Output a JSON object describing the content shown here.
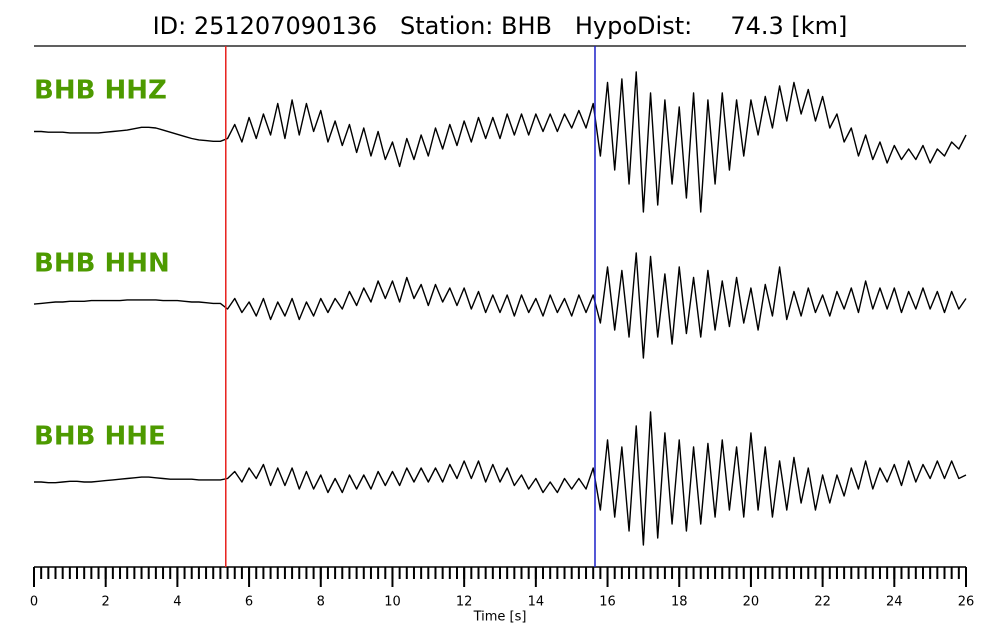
{
  "chart_data": {
    "type": "waveform",
    "title": "ID: 251207090136   Station: BHB   HypoDist:     74.3 [km]",
    "xlabel": "Time [s]",
    "xlim": [
      0,
      26
    ],
    "xticks": [
      0,
      2,
      4,
      6,
      8,
      10,
      12,
      14,
      16,
      18,
      20,
      22,
      24,
      26
    ],
    "xminorticks": [
      0,
      0.2,
      0.4,
      0.6,
      0.8,
      1,
      1.2,
      1.4,
      1.6,
      1.8,
      2,
      2.2,
      2.4,
      2.6,
      2.8,
      3,
      3.2,
      3.4,
      3.6,
      3.8,
      4,
      4.2,
      4.4,
      4.6,
      4.8,
      5,
      5.2,
      5.4,
      5.6,
      5.8,
      6,
      6.2,
      6.4,
      6.6,
      6.8,
      7,
      7.2,
      7.4,
      7.6,
      7.8,
      8,
      8.2,
      8.4,
      8.6,
      8.8,
      9,
      9.2,
      9.4,
      9.6,
      9.8,
      10,
      10.2,
      10.4,
      10.6,
      10.8,
      11,
      11.2,
      11.4,
      11.6,
      11.8,
      12,
      12.2,
      12.4,
      12.6,
      12.8,
      13,
      13.2,
      13.4,
      13.6,
      13.8,
      14,
      14.2,
      14.4,
      14.6,
      14.8,
      15,
      15.2,
      15.4,
      15.6,
      15.8,
      16,
      16.2,
      16.4,
      16.6,
      16.8,
      17,
      17.2,
      17.4,
      17.6,
      17.8,
      18,
      18.2,
      18.4,
      18.6,
      18.8,
      19,
      19.2,
      19.4,
      19.6,
      19.8,
      20,
      20.2,
      20.4,
      20.6,
      20.8,
      21,
      21.2,
      21.4,
      21.6,
      21.8,
      22,
      22.2,
      22.4,
      22.6,
      22.8,
      23,
      23.2,
      23.4,
      23.6,
      23.8,
      24,
      24.2,
      24.4,
      24.6,
      24.8,
      25,
      25.2,
      25.4,
      25.6,
      25.8,
      26
    ],
    "picks": [
      {
        "time": 5.35,
        "color": "#e8201c"
      },
      {
        "time": 15.65,
        "color": "#1c20c8"
      }
    ],
    "label_color": "#4d9a00",
    "x": [
      0,
      0.2,
      0.4,
      0.6,
      0.8,
      1,
      1.2,
      1.4,
      1.6,
      1.8,
      2,
      2.2,
      2.4,
      2.6,
      2.8,
      3,
      3.2,
      3.4,
      3.6,
      3.8,
      4,
      4.2,
      4.4,
      4.6,
      4.8,
      5,
      5.2,
      5.4,
      5.6,
      5.8,
      6,
      6.2,
      6.4,
      6.6,
      6.8,
      7,
      7.2,
      7.4,
      7.6,
      7.8,
      8,
      8.2,
      8.4,
      8.6,
      8.8,
      9,
      9.2,
      9.4,
      9.6,
      9.8,
      10,
      10.2,
      10.4,
      10.6,
      10.8,
      11,
      11.2,
      11.4,
      11.6,
      11.8,
      12,
      12.2,
      12.4,
      12.6,
      12.8,
      13,
      13.2,
      13.4,
      13.6,
      13.8,
      14,
      14.2,
      14.4,
      14.6,
      14.8,
      15,
      15.2,
      15.4,
      15.6,
      15.8,
      16,
      16.2,
      16.4,
      16.6,
      16.8,
      17,
      17.2,
      17.4,
      17.6,
      17.8,
      18,
      18.2,
      18.4,
      18.6,
      18.8,
      19,
      19.2,
      19.4,
      19.6,
      19.8,
      20,
      20.2,
      20.4,
      20.6,
      20.8,
      21,
      21.2,
      21.4,
      21.6,
      21.8,
      22,
      22.2,
      22.4,
      22.6,
      22.8,
      23,
      23.2,
      23.4,
      23.6,
      23.8,
      24,
      24.2,
      24.4,
      24.6,
      24.8,
      25,
      25.2,
      25.4,
      25.6,
      25.8,
      26
    ],
    "series": [
      {
        "name": "BHB HHZ",
        "color": "#000000",
        "values": [
          0.05,
          0.05,
          0.04,
          0.04,
          0.04,
          0.03,
          0.03,
          0.03,
          0.03,
          0.03,
          0.04,
          0.05,
          0.06,
          0.07,
          0.09,
          0.11,
          0.11,
          0.1,
          0.07,
          0.04,
          0.01,
          -0.02,
          -0.05,
          -0.07,
          -0.08,
          -0.09,
          -0.09,
          -0.05,
          0.15,
          -0.1,
          0.25,
          -0.05,
          0.3,
          0.0,
          0.45,
          -0.05,
          0.5,
          0.0,
          0.45,
          0.05,
          0.35,
          -0.1,
          0.2,
          -0.15,
          0.15,
          -0.25,
          0.1,
          -0.3,
          0.05,
          -0.35,
          -0.1,
          -0.45,
          -0.05,
          -0.35,
          0.0,
          -0.3,
          0.1,
          -0.2,
          0.15,
          -0.15,
          0.2,
          -0.1,
          0.25,
          -0.05,
          0.25,
          -0.05,
          0.3,
          0.0,
          0.3,
          0.0,
          0.3,
          0.05,
          0.3,
          0.05,
          0.3,
          0.1,
          0.35,
          0.1,
          0.45,
          -0.3,
          0.75,
          -0.5,
          0.8,
          -0.7,
          0.9,
          -1.1,
          0.6,
          -1.0,
          0.5,
          -0.7,
          0.4,
          -0.9,
          0.6,
          -1.1,
          0.5,
          -0.7,
          0.6,
          -0.5,
          0.5,
          -0.3,
          0.5,
          0.0,
          0.55,
          0.1,
          0.7,
          0.2,
          0.75,
          0.3,
          0.65,
          0.2,
          0.55,
          0.1,
          0.3,
          -0.1,
          0.1,
          -0.3,
          0.0,
          -0.35,
          -0.1,
          -0.4,
          -0.15,
          -0.35,
          -0.2,
          -0.35,
          -0.15,
          -0.4,
          -0.2,
          -0.3,
          -0.1,
          -0.2,
          0.0
        ]
      },
      {
        "name": "BHB HHN",
        "color": "#000000",
        "values": [
          -0.03,
          -0.02,
          -0.01,
          0,
          0,
          0.01,
          0.01,
          0.01,
          0.02,
          0.02,
          0.02,
          0.02,
          0.02,
          0.03,
          0.03,
          0.03,
          0.03,
          0.03,
          0.02,
          0.02,
          0.02,
          0.01,
          0.0,
          0.0,
          -0.01,
          -0.02,
          -0.02,
          -0.1,
          0.05,
          -0.15,
          0.0,
          -0.2,
          0.05,
          -0.25,
          0.0,
          -0.2,
          0.05,
          -0.25,
          0.0,
          -0.2,
          0.05,
          -0.15,
          0.05,
          -0.1,
          0.15,
          -0.05,
          0.2,
          0.0,
          0.3,
          0.05,
          0.3,
          0.0,
          0.35,
          0.05,
          0.25,
          -0.05,
          0.25,
          0.0,
          0.2,
          -0.05,
          0.2,
          -0.1,
          0.15,
          -0.15,
          0.1,
          -0.15,
          0.1,
          -0.2,
          0.1,
          -0.15,
          0.05,
          -0.2,
          0.1,
          -0.15,
          0.05,
          -0.2,
          0.1,
          -0.15,
          0.1,
          -0.3,
          0.5,
          -0.4,
          0.45,
          -0.5,
          0.7,
          -0.8,
          0.65,
          -0.5,
          0.4,
          -0.6,
          0.5,
          -0.45,
          0.35,
          -0.5,
          0.45,
          -0.4,
          0.3,
          -0.35,
          0.35,
          -0.3,
          0.2,
          -0.4,
          0.25,
          -0.2,
          0.5,
          -0.25,
          0.15,
          -0.2,
          0.2,
          -0.15,
          0.1,
          -0.2,
          0.15,
          -0.1,
          0.2,
          -0.15,
          0.3,
          -0.1,
          0.2,
          -0.1,
          0.2,
          -0.15,
          0.15,
          -0.1,
          0.2,
          -0.1,
          0.15,
          -0.15,
          0.15,
          -0.1,
          0.05
        ]
      },
      {
        "name": "BHB HHE",
        "color": "#000000",
        "values": [
          0.0,
          0.0,
          -0.01,
          -0.01,
          0.0,
          0.01,
          0.01,
          0.0,
          0.0,
          0.01,
          0.02,
          0.03,
          0.04,
          0.05,
          0.06,
          0.07,
          0.07,
          0.06,
          0.05,
          0.04,
          0.04,
          0.04,
          0.04,
          0.03,
          0.03,
          0.03,
          0.03,
          0.05,
          0.15,
          0.0,
          0.2,
          0.05,
          0.25,
          -0.05,
          0.2,
          -0.05,
          0.2,
          -0.1,
          0.15,
          -0.1,
          0.1,
          -0.15,
          0.05,
          -0.15,
          0.1,
          -0.1,
          0.1,
          -0.1,
          0.15,
          -0.05,
          0.15,
          -0.05,
          0.2,
          0.0,
          0.2,
          0.0,
          0.2,
          0.0,
          0.25,
          0.05,
          0.3,
          0.05,
          0.3,
          0.0,
          0.25,
          0.0,
          0.2,
          -0.05,
          0.1,
          -0.1,
          0.05,
          -0.15,
          0.0,
          -0.15,
          0.05,
          -0.1,
          0.05,
          -0.1,
          0.2,
          -0.4,
          0.6,
          -0.5,
          0.5,
          -0.7,
          0.8,
          -0.9,
          1.0,
          -0.8,
          0.7,
          -0.6,
          0.6,
          -0.7,
          0.5,
          -0.6,
          0.55,
          -0.5,
          0.6,
          -0.4,
          0.5,
          -0.5,
          0.7,
          -0.4,
          0.5,
          -0.5,
          0.3,
          -0.4,
          0.35,
          -0.3,
          0.2,
          -0.4,
          0.1,
          -0.3,
          0.1,
          -0.2,
          0.2,
          -0.1,
          0.3,
          -0.1,
          0.2,
          0.0,
          0.25,
          -0.05,
          0.3,
          0.0,
          0.25,
          0.05,
          0.3,
          0.05,
          0.3,
          0.05,
          0.1
        ]
      }
    ]
  }
}
